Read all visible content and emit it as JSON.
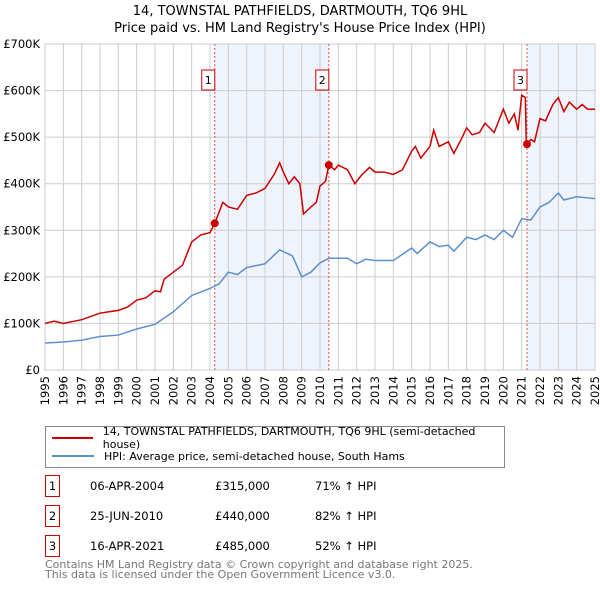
{
  "chart_data": {
    "type": "line",
    "title": "14, TOWNSTAL PATHFIELDS, DARTMOUTH, TQ6 9HL",
    "subtitle": "Price paid vs. HM Land Registry's House Price Index (HPI)",
    "xlim": [
      1995,
      2025
    ],
    "ylim": [
      0,
      700000
    ],
    "x_ticks": [
      "1995",
      "1996",
      "1997",
      "1998",
      "1999",
      "2000",
      "2001",
      "2002",
      "2003",
      "2004",
      "2005",
      "2006",
      "2007",
      "2008",
      "2009",
      "2010",
      "2011",
      "2012",
      "2013",
      "2014",
      "2015",
      "2016",
      "2017",
      "2018",
      "2019",
      "2020",
      "2021",
      "2022",
      "2023",
      "2024",
      "2025"
    ],
    "y_ticks": [
      {
        "v": 0,
        "label": "£0"
      },
      {
        "v": 100000,
        "label": "£100K"
      },
      {
        "v": 200000,
        "label": "£200K"
      },
      {
        "v": 300000,
        "label": "£300K"
      },
      {
        "v": 400000,
        "label": "£400K"
      },
      {
        "v": 500000,
        "label": "£500K"
      },
      {
        "v": 600000,
        "label": "£600K"
      },
      {
        "v": 700000,
        "label": "£700K"
      }
    ],
    "grid": true,
    "series": [
      {
        "name": "14, TOWNSTAL PATHFIELDS, DARTMOUTH, TQ6 9HL (semi-detached house)",
        "color": "#cc0000",
        "points": [
          [
            1995,
            100
          ],
          [
            1995.5,
            105
          ],
          [
            1996,
            100
          ],
          [
            1996.5,
            104
          ],
          [
            1997,
            108
          ],
          [
            1997.5,
            115
          ],
          [
            1998,
            122
          ],
          [
            1998.5,
            125
          ],
          [
            1999,
            128
          ],
          [
            1999.5,
            135
          ],
          [
            2000,
            150
          ],
          [
            2000.5,
            155
          ],
          [
            2001,
            170
          ],
          [
            2001.3,
            168
          ],
          [
            2001.5,
            195
          ],
          [
            2002,
            210
          ],
          [
            2002.5,
            225
          ],
          [
            2003,
            275
          ],
          [
            2003.5,
            290
          ],
          [
            2004,
            295
          ],
          [
            2004.26,
            315
          ],
          [
            2004.7,
            360
          ],
          [
            2005,
            350
          ],
          [
            2005.5,
            345
          ],
          [
            2006,
            375
          ],
          [
            2006.5,
            380
          ],
          [
            2007,
            390
          ],
          [
            2007.5,
            420
          ],
          [
            2007.8,
            445
          ],
          [
            2008,
            425
          ],
          [
            2008.3,
            400
          ],
          [
            2008.6,
            415
          ],
          [
            2008.9,
            400
          ],
          [
            2009.1,
            335
          ],
          [
            2009.5,
            350
          ],
          [
            2009.8,
            360
          ],
          [
            2010,
            395
          ],
          [
            2010.3,
            405
          ],
          [
            2010.48,
            440
          ],
          [
            2010.8,
            430
          ],
          [
            2011,
            440
          ],
          [
            2011.5,
            430
          ],
          [
            2011.9,
            400
          ],
          [
            2012.3,
            420
          ],
          [
            2012.7,
            435
          ],
          [
            2013,
            425
          ],
          [
            2013.5,
            425
          ],
          [
            2014,
            420
          ],
          [
            2014.5,
            430
          ],
          [
            2015,
            470
          ],
          [
            2015.2,
            480
          ],
          [
            2015.5,
            455
          ],
          [
            2016,
            480
          ],
          [
            2016.2,
            515
          ],
          [
            2016.5,
            480
          ],
          [
            2017,
            490
          ],
          [
            2017.3,
            465
          ],
          [
            2017.7,
            495
          ],
          [
            2018,
            520
          ],
          [
            2018.3,
            505
          ],
          [
            2018.7,
            510
          ],
          [
            2019,
            530
          ],
          [
            2019.5,
            510
          ],
          [
            2020,
            560
          ],
          [
            2020.3,
            530
          ],
          [
            2020.6,
            550
          ],
          [
            2020.8,
            515
          ],
          [
            2021,
            590
          ],
          [
            2021.2,
            585
          ],
          [
            2021.25,
            490
          ],
          [
            2021.29,
            485
          ],
          [
            2021.5,
            495
          ],
          [
            2021.7,
            490
          ],
          [
            2022,
            540
          ],
          [
            2022.3,
            535
          ],
          [
            2022.7,
            570
          ],
          [
            2023,
            585
          ],
          [
            2023.3,
            555
          ],
          [
            2023.6,
            575
          ],
          [
            2024,
            560
          ],
          [
            2024.3,
            570
          ],
          [
            2024.6,
            560
          ],
          [
            2025,
            560
          ]
        ]
      },
      {
        "name": "HPI: Average price, semi-detached house, South Hams",
        "color": "#5b8fd0",
        "points": [
          [
            1995,
            58
          ],
          [
            1996,
            60
          ],
          [
            1997,
            64
          ],
          [
            1998,
            72
          ],
          [
            1999,
            75
          ],
          [
            2000,
            88
          ],
          [
            2001,
            98
          ],
          [
            2002,
            125
          ],
          [
            2003,
            160
          ],
          [
            2004,
            175
          ],
          [
            2004.5,
            185
          ],
          [
            2005,
            210
          ],
          [
            2005.5,
            205
          ],
          [
            2006,
            220
          ],
          [
            2007,
            228
          ],
          [
            2007.8,
            258
          ],
          [
            2008.5,
            245
          ],
          [
            2009,
            200
          ],
          [
            2009.5,
            210
          ],
          [
            2010,
            230
          ],
          [
            2010.5,
            240
          ],
          [
            2011,
            240
          ],
          [
            2011.5,
            240
          ],
          [
            2012,
            228
          ],
          [
            2012.5,
            238
          ],
          [
            2013,
            235
          ],
          [
            2014,
            235
          ],
          [
            2015,
            262
          ],
          [
            2015.3,
            250
          ],
          [
            2016,
            275
          ],
          [
            2016.5,
            265
          ],
          [
            2017,
            268
          ],
          [
            2017.3,
            255
          ],
          [
            2018,
            285
          ],
          [
            2018.5,
            280
          ],
          [
            2019,
            290
          ],
          [
            2019.5,
            280
          ],
          [
            2020,
            300
          ],
          [
            2020.5,
            285
          ],
          [
            2021,
            325
          ],
          [
            2021.5,
            322
          ],
          [
            2022,
            350
          ],
          [
            2022.5,
            360
          ],
          [
            2023,
            380
          ],
          [
            2023.3,
            365
          ],
          [
            2024,
            372
          ],
          [
            2024.5,
            370
          ],
          [
            2025,
            368
          ]
        ]
      }
    ],
    "y_unit": "thousands GBP",
    "sales": [
      {
        "id": "1",
        "x": 2004.26,
        "value": 315
      },
      {
        "id": "2",
        "x": 2010.48,
        "value": 440
      },
      {
        "id": "3",
        "x": 2021.29,
        "value": 485
      }
    ],
    "shaded_ranges": [
      [
        2004.26,
        2010.48
      ],
      [
        2021.29,
        2025
      ]
    ]
  },
  "legend": {
    "red": "14, TOWNSTAL PATHFIELDS, DARTMOUTH, TQ6 9HL (semi-detached house)",
    "blue": "HPI: Average price, semi-detached house, South Hams"
  },
  "table": [
    {
      "id": "1",
      "date": "06-APR-2004",
      "price": "£315,000",
      "hpi": "71% ↑ HPI"
    },
    {
      "id": "2",
      "date": "25-JUN-2010",
      "price": "£440,000",
      "hpi": "82% ↑ HPI"
    },
    {
      "id": "3",
      "date": "16-APR-2021",
      "price": "£485,000",
      "hpi": "52% ↑ HPI"
    }
  ],
  "footer": {
    "line1": "Contains HM Land Registry data © Crown copyright and database right 2025.",
    "line2": "This data is licensed under the Open Government Licence v3.0."
  }
}
